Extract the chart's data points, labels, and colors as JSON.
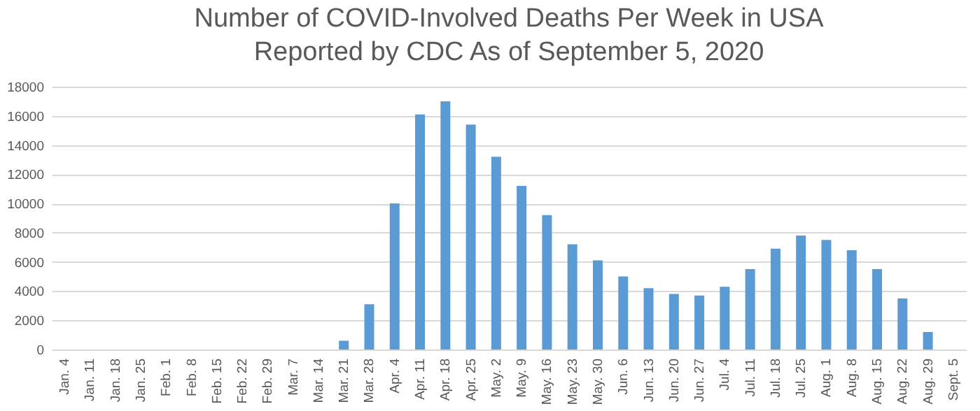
{
  "chart_data": {
    "type": "bar",
    "title": "Number of COVID-Involved Deaths Per Week in USA\nReported by CDC As of September 5, 2020",
    "categories": [
      "Jan. 4",
      "Jan. 11",
      "Jan. 18",
      "Jan. 25",
      "Feb. 1",
      "Feb. 8",
      "Feb. 15",
      "Feb. 22",
      "Feb. 29",
      "Mar. 7",
      "Mar. 14",
      "Mar. 21",
      "Mar. 28",
      "Apr. 4",
      "Apr. 11",
      "Apr. 18",
      "Apr. 25",
      "May. 2",
      "May. 9",
      "May. 16",
      "May. 23",
      "May. 30",
      "Jun. 6",
      "Jun. 13",
      "Jun. 20",
      "Jun. 27",
      "Jul. 4",
      "Jul. 11",
      "Jul. 18",
      "Jul. 25",
      "Aug. 1",
      "Aug. 8",
      "Aug. 15",
      "Aug. 22",
      "Aug. 29",
      "Sept. 5"
    ],
    "values": [
      0,
      0,
      0,
      0,
      0,
      0,
      0,
      0,
      0,
      0,
      0,
      600,
      3100,
      10000,
      16100,
      17000,
      15400,
      13200,
      11200,
      9200,
      7200,
      6100,
      5000,
      4200,
      3800,
      3700,
      4300,
      5500,
      6900,
      7800,
      7500,
      6800,
      5500,
      3500,
      1200,
      0
    ],
    "color": "#5b9bd5",
    "ylim": [
      0,
      18000
    ],
    "yticks": [
      0,
      2000,
      4000,
      6000,
      8000,
      10000,
      12000,
      14000,
      16000,
      18000
    ],
    "grid": "y"
  }
}
